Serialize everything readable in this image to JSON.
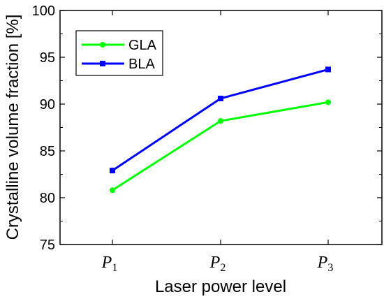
{
  "chart_data": {
    "type": "line",
    "categories": [
      {
        "base": "P",
        "sub": "1"
      },
      {
        "base": "P",
        "sub": "2"
      },
      {
        "base": "P",
        "sub": "3"
      }
    ],
    "series": [
      {
        "name": "GLA",
        "values": [
          80.8,
          88.2,
          90.2
        ],
        "color": "#00ff00",
        "marker": "circle"
      },
      {
        "name": "BLA",
        "values": [
          82.9,
          90.6,
          93.7
        ],
        "color": "#0000ff",
        "marker": "square"
      }
    ],
    "xlabel": "Laser power level",
    "ylabel": "Crystalline volume fraction [%]",
    "ylim": [
      75,
      100
    ],
    "yticks": [
      "75",
      "80",
      "85",
      "90",
      "95",
      "100"
    ],
    "grid": false,
    "legend_position": "top-left"
  }
}
